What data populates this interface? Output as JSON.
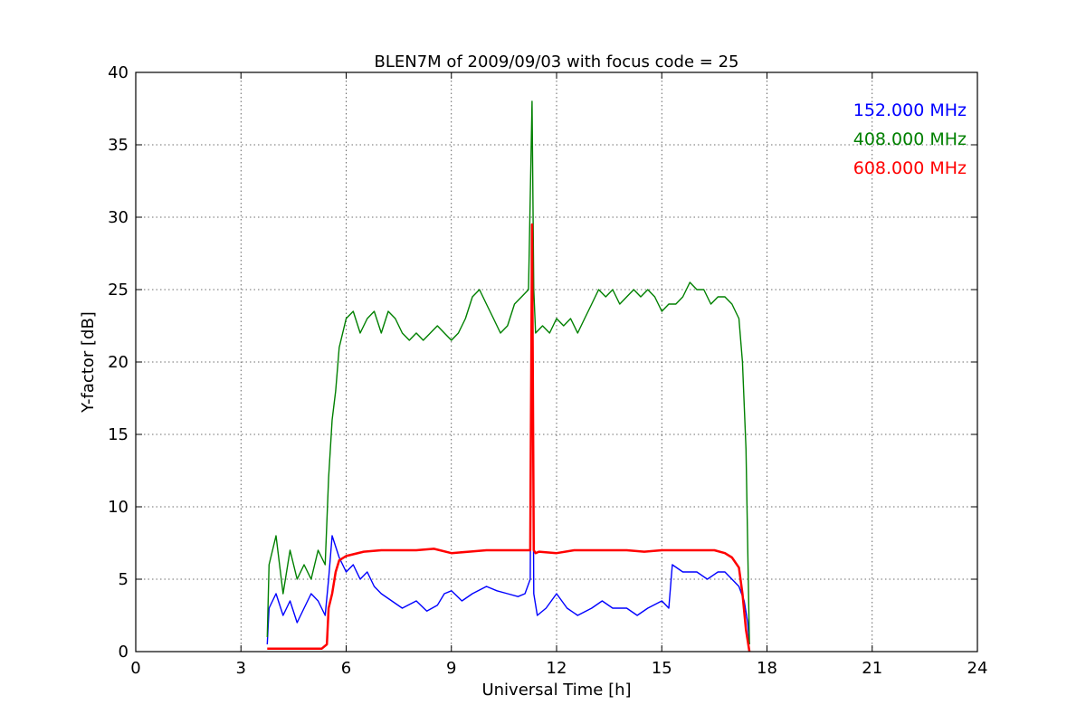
{
  "chart_data": {
    "type": "line",
    "title": "BLEN7M of 2009/09/03 with focus code = 25",
    "xlabel": "Universal Time [h]",
    "ylabel": "Y-factor [dB]",
    "xlim": [
      0,
      24
    ],
    "ylim": [
      0,
      40
    ],
    "xticks": [
      0,
      3,
      6,
      9,
      12,
      15,
      18,
      21,
      24
    ],
    "yticks": [
      0,
      5,
      10,
      15,
      20,
      25,
      30,
      35,
      40
    ],
    "grid": true,
    "legend_position": "top-right",
    "series": [
      {
        "name": "152.000 MHz",
        "color": "#0000ff",
        "x": [
          3.75,
          3.8,
          4.0,
          4.2,
          4.4,
          4.6,
          4.8,
          5.0,
          5.2,
          5.4,
          5.5,
          5.6,
          5.8,
          6.0,
          6.2,
          6.4,
          6.6,
          6.8,
          7.0,
          7.3,
          7.6,
          8.0,
          8.3,
          8.6,
          8.8,
          9.0,
          9.3,
          9.6,
          10.0,
          10.3,
          10.6,
          10.9,
          11.1,
          11.25,
          11.3,
          11.35,
          11.45,
          11.7,
          12.0,
          12.3,
          12.6,
          13.0,
          13.3,
          13.6,
          14.0,
          14.3,
          14.6,
          15.0,
          15.2,
          15.3,
          15.6,
          16.0,
          16.3,
          16.6,
          16.8,
          17.0,
          17.2,
          17.35,
          17.45,
          17.5
        ],
        "y": [
          0.5,
          3.0,
          4.0,
          2.5,
          3.5,
          2.0,
          3.0,
          4.0,
          3.5,
          2.5,
          5.0,
          8.0,
          6.5,
          5.5,
          6.0,
          5.0,
          5.5,
          4.5,
          4.0,
          3.5,
          3.0,
          3.5,
          2.8,
          3.2,
          4.0,
          4.2,
          3.5,
          4.0,
          4.5,
          4.2,
          4.0,
          3.8,
          4.0,
          5.0,
          29.0,
          4.0,
          2.5,
          3.0,
          4.0,
          3.0,
          2.5,
          3.0,
          3.5,
          3.0,
          3.0,
          2.5,
          3.0,
          3.5,
          3.0,
          6.0,
          5.5,
          5.5,
          5.0,
          5.5,
          5.5,
          5.0,
          4.5,
          3.5,
          2.0,
          0.5
        ]
      },
      {
        "name": "408.000 MHz",
        "color": "#008000",
        "x": [
          3.75,
          3.8,
          4.0,
          4.2,
          4.4,
          4.6,
          4.8,
          5.0,
          5.2,
          5.4,
          5.5,
          5.6,
          5.7,
          5.8,
          6.0,
          6.2,
          6.4,
          6.6,
          6.8,
          7.0,
          7.2,
          7.4,
          7.6,
          7.8,
          8.0,
          8.2,
          8.4,
          8.6,
          8.8,
          9.0,
          9.2,
          9.4,
          9.6,
          9.8,
          10.0,
          10.2,
          10.4,
          10.6,
          10.8,
          11.0,
          11.2,
          11.3,
          11.35,
          11.4,
          11.6,
          11.8,
          12.0,
          12.2,
          12.4,
          12.6,
          12.8,
          13.0,
          13.2,
          13.4,
          13.6,
          13.8,
          14.0,
          14.2,
          14.4,
          14.6,
          14.8,
          15.0,
          15.2,
          15.4,
          15.6,
          15.8,
          16.0,
          16.2,
          16.4,
          16.6,
          16.8,
          17.0,
          17.2,
          17.3,
          17.4,
          17.5
        ],
        "y": [
          1.0,
          6.0,
          8.0,
          4.0,
          7.0,
          5.0,
          6.0,
          5.0,
          7.0,
          6.0,
          12.0,
          16.0,
          18.0,
          21.0,
          23.0,
          23.5,
          22.0,
          23.0,
          23.5,
          22.0,
          23.5,
          23.0,
          22.0,
          21.5,
          22.0,
          21.5,
          22.0,
          22.5,
          22.0,
          21.5,
          22.0,
          23.0,
          24.5,
          25.0,
          24.0,
          23.0,
          22.0,
          22.5,
          24.0,
          24.5,
          25.0,
          38.0,
          25.0,
          22.0,
          22.5,
          22.0,
          23.0,
          22.5,
          23.0,
          22.0,
          23.0,
          24.0,
          25.0,
          24.5,
          25.0,
          24.0,
          24.5,
          25.0,
          24.5,
          25.0,
          24.5,
          23.5,
          24.0,
          24.0,
          24.5,
          25.5,
          25.0,
          25.0,
          24.0,
          24.5,
          24.5,
          24.0,
          23.0,
          20.0,
          14.0,
          0.5
        ]
      },
      {
        "name": "608.000 MHz",
        "color": "#ff0000",
        "x": [
          3.75,
          4.0,
          4.5,
          5.0,
          5.3,
          5.45,
          5.5,
          5.6,
          5.7,
          5.8,
          6.0,
          6.5,
          7.0,
          7.5,
          8.0,
          8.5,
          9.0,
          9.5,
          10.0,
          10.5,
          11.0,
          11.25,
          11.3,
          11.35,
          11.4,
          11.5,
          12.0,
          12.5,
          13.0,
          13.5,
          14.0,
          14.5,
          15.0,
          15.5,
          16.0,
          16.5,
          16.8,
          17.0,
          17.2,
          17.3,
          17.4,
          17.5
        ],
        "y": [
          0.2,
          0.2,
          0.2,
          0.2,
          0.2,
          0.5,
          3.0,
          4.0,
          5.5,
          6.3,
          6.6,
          6.9,
          7.0,
          7.0,
          7.0,
          7.1,
          6.8,
          6.9,
          7.0,
          7.0,
          7.0,
          7.0,
          29.5,
          7.0,
          6.8,
          6.9,
          6.8,
          7.0,
          7.0,
          7.0,
          7.0,
          6.9,
          7.0,
          7.0,
          7.0,
          7.0,
          6.8,
          6.5,
          5.8,
          4.0,
          1.5,
          0.0
        ]
      }
    ]
  }
}
